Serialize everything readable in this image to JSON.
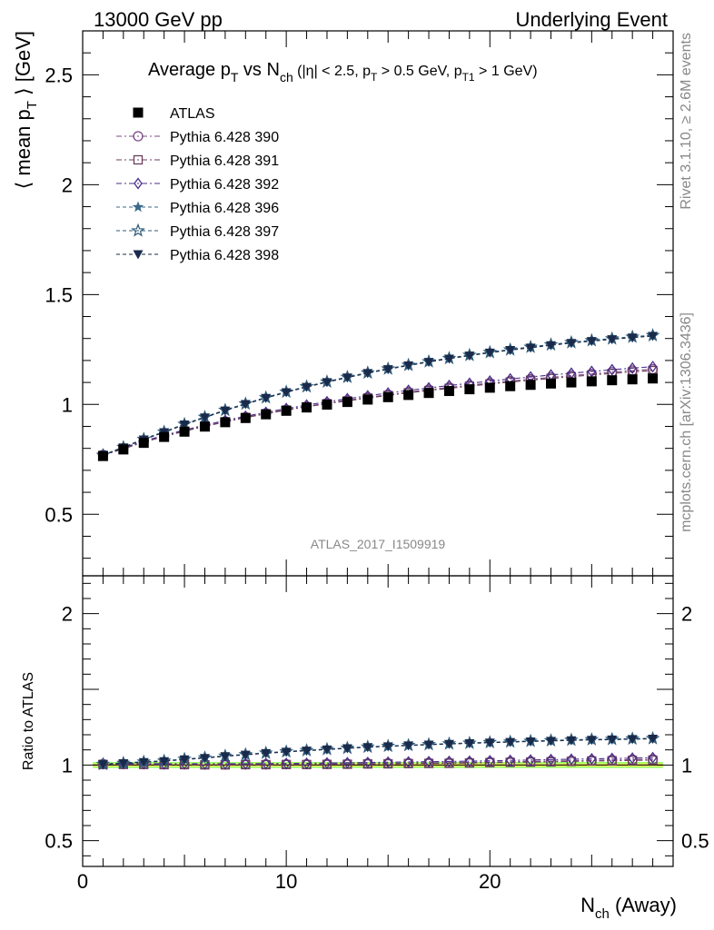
{
  "header": {
    "left": "13000 GeV pp",
    "right": "Underlying Event"
  },
  "side_labels": {
    "rivet": "Rivet 3.1.10, ≥ 2.6M events",
    "mcplots": "mcplots.cern.ch [arXiv:1306.3436]"
  },
  "watermark": "ATLAS_2017_I1509919",
  "colors": {
    "data": "#000000",
    "p390": "#7b4a85",
    "p391": "#6b3e5c",
    "p392": "#4a2e8a",
    "p396": "#3a6a8a",
    "p397": "#2e5a7a",
    "p398": "#1a2a4a",
    "band_inner": "#ffff66",
    "band_outer": "#99ff66"
  },
  "chart_data": [
    {
      "type": "line",
      "title_parts": {
        "a": "Average p",
        "a_sub": "T",
        "b": " vs N",
        "b_sub": "ch",
        "c": " (|η| < 2.5, p",
        "c_sub": "T",
        "d": " > 0.5 GeV, p",
        "d_sub": "T1",
        "e": " > 1 GeV)"
      },
      "ylabel_parts": {
        "a": "⟨ mean p",
        "sub": "T",
        "b": " ⟩ [GeV]"
      },
      "xlim": [
        0,
        29
      ],
      "ylim": [
        0.22,
        2.7
      ],
      "yticks": [
        0.5,
        1,
        1.5,
        2,
        2.5
      ],
      "ytick_labels": [
        "0.5",
        "1",
        "1.5",
        "2",
        "2.5"
      ],
      "x": [
        1,
        2,
        3,
        4,
        5,
        6,
        7,
        8,
        9,
        10,
        11,
        12,
        13,
        14,
        15,
        16,
        17,
        18,
        19,
        20,
        21,
        22,
        23,
        24,
        25,
        26,
        27,
        28
      ],
      "series": [
        {
          "name": "ATLAS",
          "key": "data",
          "marker": "square-filled",
          "values": [
            0.765,
            0.795,
            0.825,
            0.852,
            0.876,
            0.899,
            0.919,
            0.938,
            0.955,
            0.971,
            0.986,
            0.999,
            1.011,
            1.022,
            1.033,
            1.043,
            1.052,
            1.061,
            1.069,
            1.076,
            1.083,
            1.089,
            1.095,
            1.1,
            1.105,
            1.11,
            1.114,
            1.118
          ]
        },
        {
          "name": "Pythia 6.428 390",
          "key": "p390",
          "marker": "circle-open",
          "values": [
            0.77,
            0.8,
            0.83,
            0.856,
            0.88,
            0.902,
            0.922,
            0.942,
            0.959,
            0.976,
            0.991,
            1.006,
            1.019,
            1.032,
            1.044,
            1.056,
            1.067,
            1.077,
            1.087,
            1.097,
            1.106,
            1.115,
            1.123,
            1.131,
            1.139,
            1.147,
            1.154,
            1.16
          ]
        },
        {
          "name": "Pythia 6.428 391",
          "key": "p391",
          "marker": "square-open",
          "values": [
            0.768,
            0.798,
            0.828,
            0.854,
            0.878,
            0.9,
            0.92,
            0.94,
            0.957,
            0.974,
            0.989,
            1.003,
            1.016,
            1.029,
            1.041,
            1.053,
            1.063,
            1.073,
            1.083,
            1.093,
            1.102,
            1.11,
            1.118,
            1.126,
            1.134,
            1.141,
            1.148,
            1.154
          ]
        },
        {
          "name": "Pythia 6.428 392",
          "key": "p392",
          "marker": "diamond-open",
          "values": [
            0.772,
            0.803,
            0.833,
            0.859,
            0.884,
            0.906,
            0.927,
            0.946,
            0.964,
            0.981,
            0.997,
            1.012,
            1.026,
            1.039,
            1.052,
            1.064,
            1.075,
            1.086,
            1.096,
            1.106,
            1.116,
            1.125,
            1.134,
            1.142,
            1.15,
            1.158,
            1.165,
            1.172
          ]
        },
        {
          "name": "Pythia 6.428 396",
          "key": "p396",
          "marker": "star-filled",
          "values": [
            0.77,
            0.806,
            0.843,
            0.876,
            0.911,
            0.943,
            0.975,
            1.004,
            1.032,
            1.058,
            1.082,
            1.104,
            1.125,
            1.145,
            1.163,
            1.18,
            1.196,
            1.211,
            1.225,
            1.238,
            1.25,
            1.262,
            1.273,
            1.283,
            1.292,
            1.3,
            1.308,
            1.315
          ]
        },
        {
          "name": "Pythia 6.428 397",
          "key": "p397",
          "marker": "star-open",
          "values": [
            0.769,
            0.805,
            0.842,
            0.875,
            0.91,
            0.942,
            0.974,
            1.003,
            1.031,
            1.057,
            1.081,
            1.103,
            1.124,
            1.144,
            1.162,
            1.179,
            1.195,
            1.21,
            1.224,
            1.237,
            1.249,
            1.261,
            1.272,
            1.282,
            1.291,
            1.299,
            1.307,
            1.314
          ]
        },
        {
          "name": "Pythia 6.428 398",
          "key": "p398",
          "marker": "triangle-down-filled",
          "values": [
            0.768,
            0.804,
            0.84,
            0.873,
            0.908,
            0.94,
            0.972,
            1.001,
            1.029,
            1.055,
            1.079,
            1.101,
            1.122,
            1.142,
            1.16,
            1.177,
            1.193,
            1.208,
            1.222,
            1.235,
            1.247,
            1.258,
            1.269,
            1.279,
            1.288,
            1.296,
            1.304,
            1.311
          ]
        }
      ]
    },
    {
      "type": "line",
      "ylabel": "Ratio to ATLAS",
      "xlabel_parts": {
        "a": "N",
        "sub": "ch",
        "b": " (Away)"
      },
      "xlim": [
        0,
        29
      ],
      "ylim": [
        0.33,
        2.25
      ],
      "xticks": [
        0,
        10,
        20
      ],
      "xtick_labels": [
        "0",
        "10",
        "20"
      ],
      "yticks": [
        0.5,
        1,
        2
      ],
      "ytick_labels": [
        "0.5",
        "1",
        "2"
      ]
    }
  ]
}
